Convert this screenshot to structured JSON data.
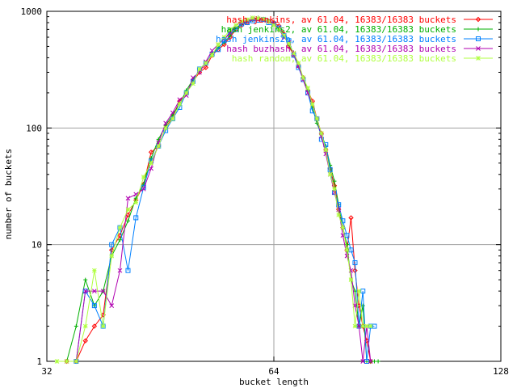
{
  "chart_data": {
    "type": "line",
    "title": "",
    "xlabel": "bucket length",
    "ylabel": "number of buckets",
    "x_scale": "log2",
    "y_scale": "log10",
    "xlim": [
      32,
      128
    ],
    "ylim": [
      1,
      1000
    ],
    "x_ticks": [
      32,
      64,
      128
    ],
    "x_tick_labels": [
      "32",
      "64",
      "128"
    ],
    "y_ticks": [
      1,
      10,
      100,
      1000
    ],
    "y_tick_labels": [
      "1",
      "10",
      "100",
      "1000"
    ],
    "grid": true,
    "legend_position": "top-right",
    "series": [
      {
        "name": "hash jenkins, av 61.04, 16383/16383 buckets",
        "color": "#ff0000",
        "marker": "diamond",
        "points": [
          [
            34,
            1
          ],
          [
            35,
            1
          ],
          [
            36,
            1.5
          ],
          [
            37,
            2
          ],
          [
            38,
            2.5
          ],
          [
            39,
            9
          ],
          [
            40,
            12
          ],
          [
            41,
            18
          ],
          [
            42,
            24
          ],
          [
            43,
            33
          ],
          [
            44,
            62
          ],
          [
            45,
            70
          ],
          [
            46,
            100
          ],
          [
            47,
            125
          ],
          [
            48,
            170
          ],
          [
            49,
            200
          ],
          [
            50,
            250
          ],
          [
            51,
            300
          ],
          [
            52,
            330
          ],
          [
            53,
            420
          ],
          [
            54,
            470
          ],
          [
            55,
            520
          ],
          [
            56,
            600
          ],
          [
            57,
            700
          ],
          [
            58,
            760
          ],
          [
            59,
            800
          ],
          [
            60,
            850
          ],
          [
            61,
            860
          ],
          [
            62,
            855
          ],
          [
            63,
            820
          ],
          [
            64,
            800
          ],
          [
            65,
            750
          ],
          [
            66,
            640
          ],
          [
            67,
            500
          ],
          [
            68,
            420
          ],
          [
            69,
            340
          ],
          [
            70,
            270
          ],
          [
            71,
            210
          ],
          [
            72,
            170
          ],
          [
            73,
            120
          ],
          [
            74,
            90
          ],
          [
            75,
            65
          ],
          [
            76,
            45
          ],
          [
            77,
            32
          ],
          [
            78,
            20
          ],
          [
            79,
            14
          ],
          [
            80,
            9
          ],
          [
            81,
            17
          ],
          [
            82,
            6
          ],
          [
            83,
            3
          ],
          [
            84,
            2
          ],
          [
            85,
            1.5
          ],
          [
            86,
            1
          ]
        ]
      },
      {
        "name": "hash jenkins2, av 61.04, 16383/16383 buckets",
        "color": "#00b000",
        "marker": "plus",
        "points": [
          [
            33,
            1
          ],
          [
            34,
            1
          ],
          [
            35,
            2
          ],
          [
            36,
            5
          ],
          [
            37,
            3
          ],
          [
            38,
            4
          ],
          [
            39,
            8
          ],
          [
            40,
            11
          ],
          [
            41,
            16
          ],
          [
            42,
            25
          ],
          [
            43,
            33
          ],
          [
            44,
            55
          ],
          [
            45,
            80
          ],
          [
            46,
            105
          ],
          [
            47,
            130
          ],
          [
            48,
            160
          ],
          [
            49,
            210
          ],
          [
            50,
            260
          ],
          [
            51,
            310
          ],
          [
            52,
            360
          ],
          [
            53,
            430
          ],
          [
            54,
            490
          ],
          [
            55,
            540
          ],
          [
            56,
            620
          ],
          [
            57,
            720
          ],
          [
            58,
            780
          ],
          [
            59,
            830
          ],
          [
            60,
            850
          ],
          [
            61,
            880
          ],
          [
            62,
            850
          ],
          [
            63,
            830
          ],
          [
            64,
            780
          ],
          [
            65,
            700
          ],
          [
            66,
            620
          ],
          [
            67,
            520
          ],
          [
            68,
            430
          ],
          [
            69,
            350
          ],
          [
            70,
            270
          ],
          [
            71,
            210
          ],
          [
            72,
            150
          ],
          [
            73,
            110
          ],
          [
            74,
            88
          ],
          [
            75,
            70
          ],
          [
            76,
            48
          ],
          [
            77,
            35
          ],
          [
            78,
            22
          ],
          [
            79,
            14
          ],
          [
            80,
            10
          ],
          [
            81,
            5
          ],
          [
            82,
            4
          ],
          [
            83,
            2
          ],
          [
            84,
            3
          ],
          [
            85,
            1
          ],
          [
            86,
            1
          ],
          [
            87,
            1
          ],
          [
            88,
            1
          ]
        ]
      },
      {
        "name": "hash jenkins2b, av 61.04, 16383/16383 buckets",
        "color": "#0080ff",
        "marker": "square",
        "points": [
          [
            35,
            1
          ],
          [
            36,
            4
          ],
          [
            37,
            3
          ],
          [
            38,
            2
          ],
          [
            39,
            10
          ],
          [
            40,
            14
          ],
          [
            41,
            6
          ],
          [
            42,
            17
          ],
          [
            43,
            31
          ],
          [
            44,
            52
          ],
          [
            45,
            70
          ],
          [
            46,
            95
          ],
          [
            47,
            120
          ],
          [
            48,
            150
          ],
          [
            49,
            200
          ],
          [
            50,
            250
          ],
          [
            51,
            320
          ],
          [
            52,
            360
          ],
          [
            53,
            430
          ],
          [
            54,
            470
          ],
          [
            55,
            560
          ],
          [
            56,
            680
          ],
          [
            57,
            700
          ],
          [
            58,
            780
          ],
          [
            59,
            800
          ],
          [
            60,
            830
          ],
          [
            61,
            840
          ],
          [
            62,
            850
          ],
          [
            63,
            800
          ],
          [
            64,
            780
          ],
          [
            65,
            720
          ],
          [
            66,
            620
          ],
          [
            67,
            560
          ],
          [
            68,
            420
          ],
          [
            69,
            330
          ],
          [
            70,
            260
          ],
          [
            71,
            200
          ],
          [
            72,
            140
          ],
          [
            73,
            120
          ],
          [
            74,
            80
          ],
          [
            75,
            72
          ],
          [
            76,
            44
          ],
          [
            77,
            28
          ],
          [
            78,
            22
          ],
          [
            79,
            16
          ],
          [
            80,
            12
          ],
          [
            81,
            9
          ],
          [
            82,
            7
          ],
          [
            83,
            2
          ],
          [
            84,
            4
          ],
          [
            85,
            1
          ],
          [
            86,
            2
          ],
          [
            87,
            2
          ]
        ]
      },
      {
        "name": "hash buzhash, av 61.04, 16383/16383 buckets",
        "color": "#b000b0",
        "marker": "x",
        "points": [
          [
            34,
            1
          ],
          [
            35,
            1
          ],
          [
            36,
            4
          ],
          [
            37,
            4
          ],
          [
            38,
            4
          ],
          [
            39,
            3
          ],
          [
            40,
            6
          ],
          [
            41,
            25
          ],
          [
            42,
            27
          ],
          [
            43,
            30
          ],
          [
            44,
            45
          ],
          [
            45,
            75
          ],
          [
            46,
            110
          ],
          [
            47,
            135
          ],
          [
            48,
            175
          ],
          [
            49,
            190
          ],
          [
            50,
            270
          ],
          [
            51,
            300
          ],
          [
            52,
            370
          ],
          [
            53,
            460
          ],
          [
            54,
            520
          ],
          [
            55,
            580
          ],
          [
            56,
            650
          ],
          [
            57,
            760
          ],
          [
            58,
            800
          ],
          [
            59,
            830
          ],
          [
            60,
            860
          ],
          [
            61,
            850
          ],
          [
            62,
            850
          ],
          [
            63,
            830
          ],
          [
            64,
            780
          ],
          [
            65,
            700
          ],
          [
            66,
            600
          ],
          [
            67,
            540
          ],
          [
            68,
            430
          ],
          [
            69,
            340
          ],
          [
            70,
            260
          ],
          [
            71,
            200
          ],
          [
            72,
            160
          ],
          [
            73,
            120
          ],
          [
            74,
            85
          ],
          [
            75,
            60
          ],
          [
            76,
            40
          ],
          [
            77,
            28
          ],
          [
            78,
            20
          ],
          [
            79,
            12
          ],
          [
            80,
            8
          ],
          [
            81,
            6
          ],
          [
            82,
            3
          ],
          [
            83,
            2
          ],
          [
            84,
            1
          ],
          [
            85,
            2
          ],
          [
            86,
            1
          ]
        ]
      },
      {
        "name": "hash random, av 61.04, 16383/16383 buckets",
        "color": "#b0ff40",
        "marker": "star",
        "points": [
          [
            33,
            1
          ],
          [
            34,
            1
          ],
          [
            35,
            1
          ],
          [
            36,
            2
          ],
          [
            37,
            6
          ],
          [
            38,
            2
          ],
          [
            39,
            8
          ],
          [
            40,
            14
          ],
          [
            41,
            20
          ],
          [
            42,
            23
          ],
          [
            43,
            38
          ],
          [
            44,
            50
          ],
          [
            45,
            70
          ],
          [
            46,
            100
          ],
          [
            47,
            120
          ],
          [
            48,
            160
          ],
          [
            49,
            200
          ],
          [
            50,
            240
          ],
          [
            51,
            320
          ],
          [
            52,
            360
          ],
          [
            53,
            420
          ],
          [
            54,
            520
          ],
          [
            55,
            600
          ],
          [
            56,
            700
          ],
          [
            57,
            760
          ],
          [
            58,
            820
          ],
          [
            59,
            850
          ],
          [
            60,
            880
          ],
          [
            61,
            870
          ],
          [
            62,
            860
          ],
          [
            63,
            820
          ],
          [
            64,
            760
          ],
          [
            65,
            700
          ],
          [
            66,
            620
          ],
          [
            67,
            530
          ],
          [
            68,
            440
          ],
          [
            69,
            360
          ],
          [
            70,
            270
          ],
          [
            71,
            220
          ],
          [
            72,
            160
          ],
          [
            73,
            120
          ],
          [
            74,
            90
          ],
          [
            75,
            65
          ],
          [
            76,
            40
          ],
          [
            77,
            30
          ],
          [
            78,
            18
          ],
          [
            79,
            14
          ],
          [
            80,
            9
          ],
          [
            81,
            5
          ],
          [
            82,
            2
          ],
          [
            83,
            4
          ],
          [
            84,
            2
          ],
          [
            85,
            2
          ],
          [
            86,
            2
          ]
        ]
      }
    ]
  }
}
